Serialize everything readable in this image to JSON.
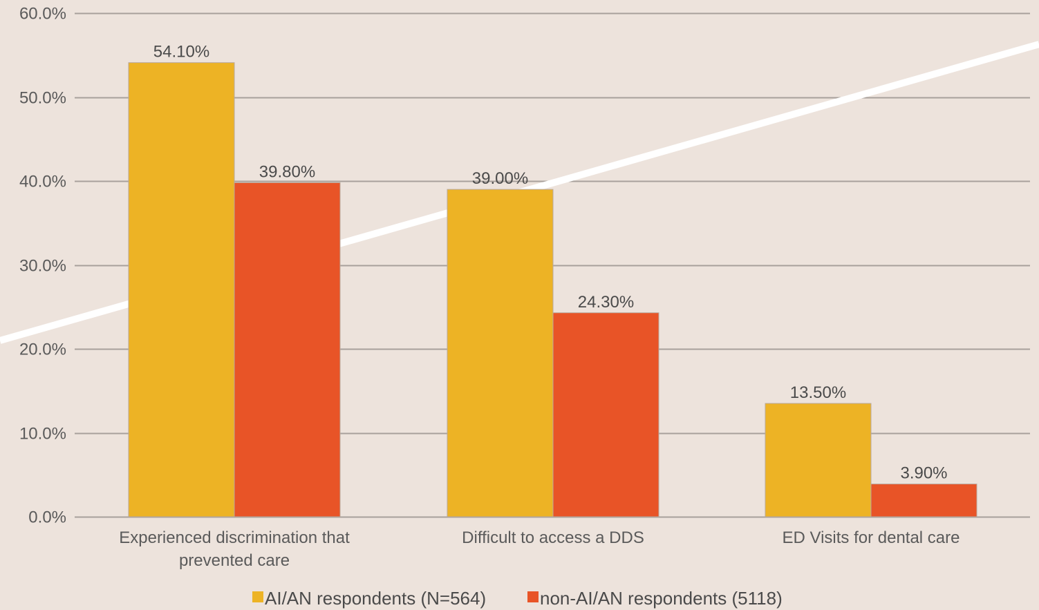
{
  "chart_data": {
    "type": "bar",
    "categories": [
      [
        "Experienced discrimination that",
        "prevented care"
      ],
      [
        "Difficult to access a DDS"
      ],
      [
        "ED Visits for dental care"
      ]
    ],
    "series": [
      {
        "name": "AI/AN respondents (N=564)",
        "color": "#edb325",
        "values": [
          54.1,
          39.0,
          13.5
        ],
        "labels": [
          "54.10%",
          "39.00%",
          "13.50%"
        ]
      },
      {
        "name": "non-AI/AN respondents (5118)",
        "color": "#e85427",
        "values": [
          39.8,
          24.3,
          3.9
        ],
        "labels": [
          "39.80%",
          "24.30%",
          "3.90%"
        ]
      }
    ],
    "y_ticks": [
      0,
      10,
      20,
      30,
      40,
      50,
      60
    ],
    "y_tick_labels": [
      "0.0%",
      "10.0%",
      "20.0%",
      "30.0%",
      "40.0%",
      "50.0%",
      "60.0%"
    ],
    "ylim": [
      0,
      60
    ],
    "grid": true,
    "legend_position": "bottom",
    "background_color": "#ede3dc",
    "gridline_color": "#a8a09b"
  }
}
